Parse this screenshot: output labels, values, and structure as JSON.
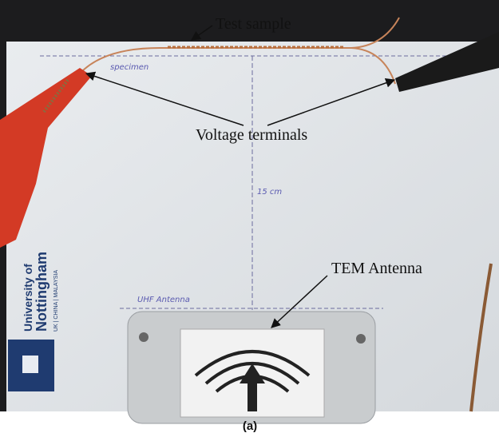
{
  "annotations": [
    {
      "label": "Test sample"
    },
    {
      "label": "Voltage terminals"
    },
    {
      "label": "TEM Antenna"
    }
  ],
  "handwriting": {
    "specimen": "specimen",
    "distance": "15 cm",
    "antenna": "UHF Antenna"
  },
  "logo": {
    "line1": "University of",
    "line2": "Nottingham",
    "line3": "UK | CHINA | MALAYSIA"
  },
  "caption": "(a)"
}
